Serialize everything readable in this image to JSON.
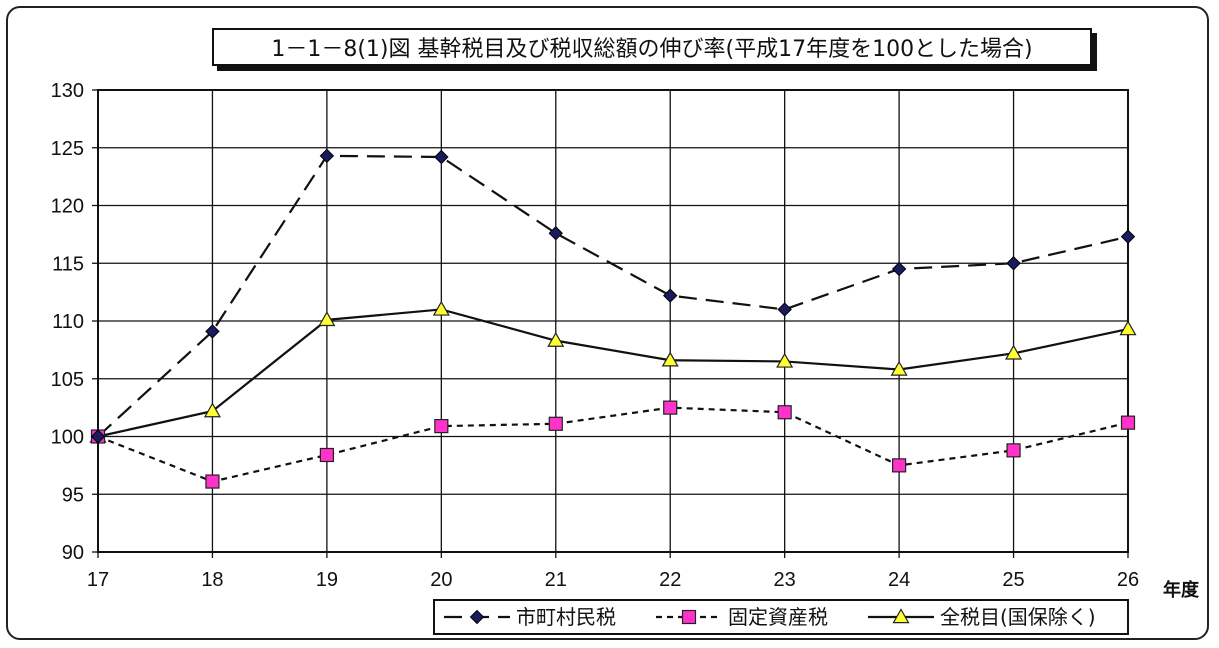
{
  "chart_data": {
    "type": "line",
    "title": "1－1－8(1)図 基幹税目及び税収総額の伸び率(平成17年度を100とした場合)",
    "xlabel": "年度",
    "ylabel": "",
    "categories": [
      "17",
      "18",
      "19",
      "20",
      "21",
      "22",
      "23",
      "24",
      "25",
      "26"
    ],
    "ylim": [
      90,
      130
    ],
    "yticks": [
      "90",
      "95",
      "100",
      "105",
      "110",
      "115",
      "120",
      "125",
      "130"
    ],
    "grid": true,
    "legend_position": "bottom-right",
    "series": [
      {
        "name": "市町村民税",
        "color": "#1a1a5e",
        "marker": "diamond",
        "dash": "long-dash",
        "values": [
          100.0,
          109.1,
          124.3,
          124.2,
          117.6,
          112.2,
          111.0,
          114.5,
          115.0,
          117.3
        ]
      },
      {
        "name": "固定資産税",
        "color": "#ff33cc",
        "marker": "square",
        "dash": "short-dash",
        "values": [
          100.0,
          96.1,
          98.4,
          100.9,
          101.1,
          102.5,
          102.1,
          97.5,
          98.8,
          101.2
        ]
      },
      {
        "name": "全税目(国保除く)",
        "color": "#ffff33",
        "marker": "triangle",
        "dash": "solid",
        "values": [
          100.0,
          102.2,
          110.1,
          111.0,
          108.3,
          106.6,
          106.5,
          105.8,
          107.2,
          109.3
        ]
      }
    ]
  }
}
